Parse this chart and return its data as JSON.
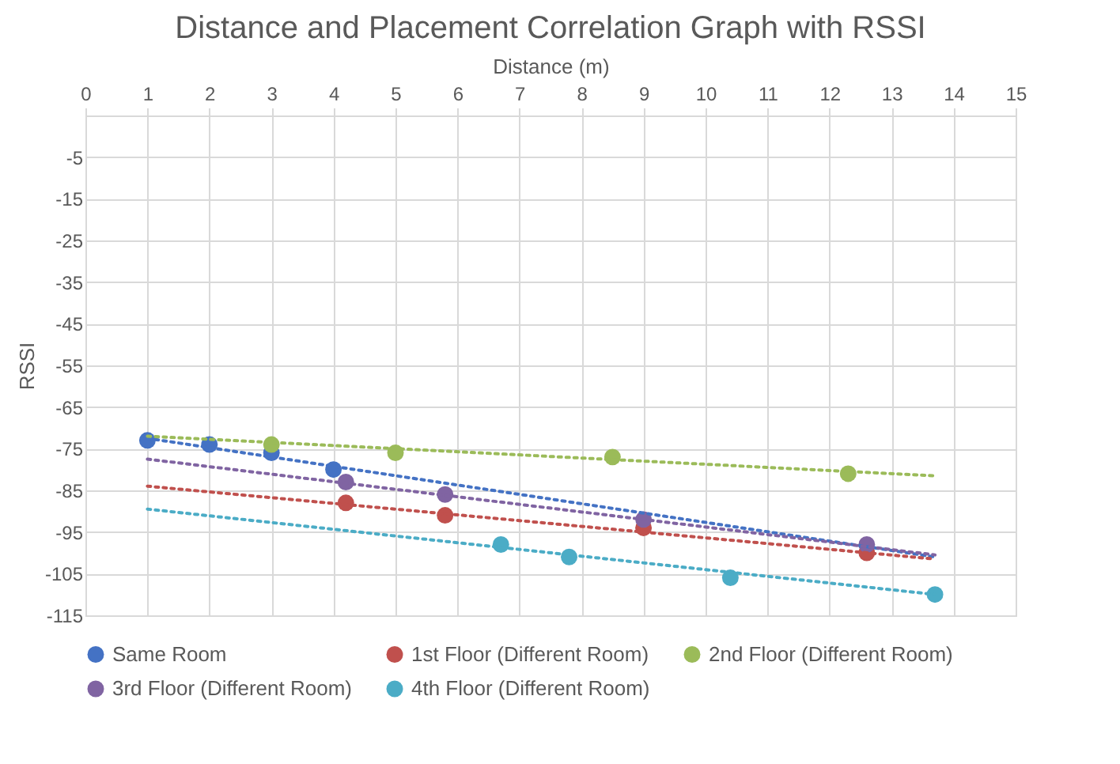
{
  "chart_data": {
    "type": "scatter",
    "title": "Distance and Placement Correlation Graph with RSSI",
    "xlabel": "Distance (m)",
    "ylabel": "RSSI",
    "xlim": [
      0,
      15
    ],
    "xticks": [
      0,
      1,
      2,
      3,
      4,
      5,
      6,
      7,
      8,
      9,
      10,
      11,
      12,
      13,
      14,
      15
    ],
    "ylim": [
      -115,
      5
    ],
    "yticks": [
      -115,
      -105,
      -95,
      -85,
      -75,
      -65,
      -55,
      -45,
      -35,
      -25,
      -15,
      -5
    ],
    "grid": true,
    "legend": "bottom",
    "series": [
      {
        "name": "Same Room",
        "color": "#4472c4",
        "marker": "circle",
        "x": [
          1,
          2,
          3,
          4
        ],
        "values": [
          -73,
          -74,
          -76,
          -80
        ]
      },
      {
        "name": "1st Floor (Different Room)",
        "color": "#c0504d",
        "marker": "circle",
        "x": [
          4.2,
          5.8,
          9,
          12.6
        ],
        "values": [
          -88,
          -91,
          -94,
          -100
        ]
      },
      {
        "name": "2nd Floor (Different Room)",
        "color": "#9bbb59",
        "marker": "circle",
        "x": [
          3,
          5,
          8.5,
          12.3
        ],
        "values": [
          -74,
          -76,
          -77,
          -81
        ]
      },
      {
        "name": "3rd Floor (Different Room)",
        "color": "#8064a2",
        "marker": "circle",
        "x": [
          4.2,
          5.8,
          9,
          12.6
        ],
        "values": [
          -83,
          -86,
          -92,
          -98
        ]
      },
      {
        "name": "4th Floor (Different Room)",
        "color": "#4bacc6",
        "marker": "circle",
        "x": [
          6.7,
          7.8,
          10.4,
          13.7
        ],
        "values": [
          -98,
          -101,
          -106,
          -110
        ]
      },
      {
        "type": "line",
        "line_style": "dotted",
        "marker": "none",
        "color": "#4472c4",
        "x": [
          1,
          13.7
        ],
        "values": [
          -72.5,
          -101
        ]
      },
      {
        "type": "line",
        "line_style": "dotted",
        "marker": "none",
        "color": "#c0504d",
        "x": [
          1,
          13.7
        ],
        "values": [
          -84,
          -101.5
        ]
      },
      {
        "type": "line",
        "line_style": "dotted",
        "marker": "none",
        "color": "#9bbb59",
        "x": [
          1,
          13.7
        ],
        "values": [
          -72,
          -81.5
        ]
      },
      {
        "type": "line",
        "line_style": "dotted",
        "marker": "none",
        "color": "#8064a2",
        "x": [
          1,
          13.7
        ],
        "values": [
          -77.5,
          -100.5
        ]
      },
      {
        "type": "line",
        "line_style": "dotted",
        "marker": "none",
        "color": "#4bacc6",
        "x": [
          1,
          13.7
        ],
        "values": [
          -89.5,
          -110
        ]
      }
    ]
  }
}
